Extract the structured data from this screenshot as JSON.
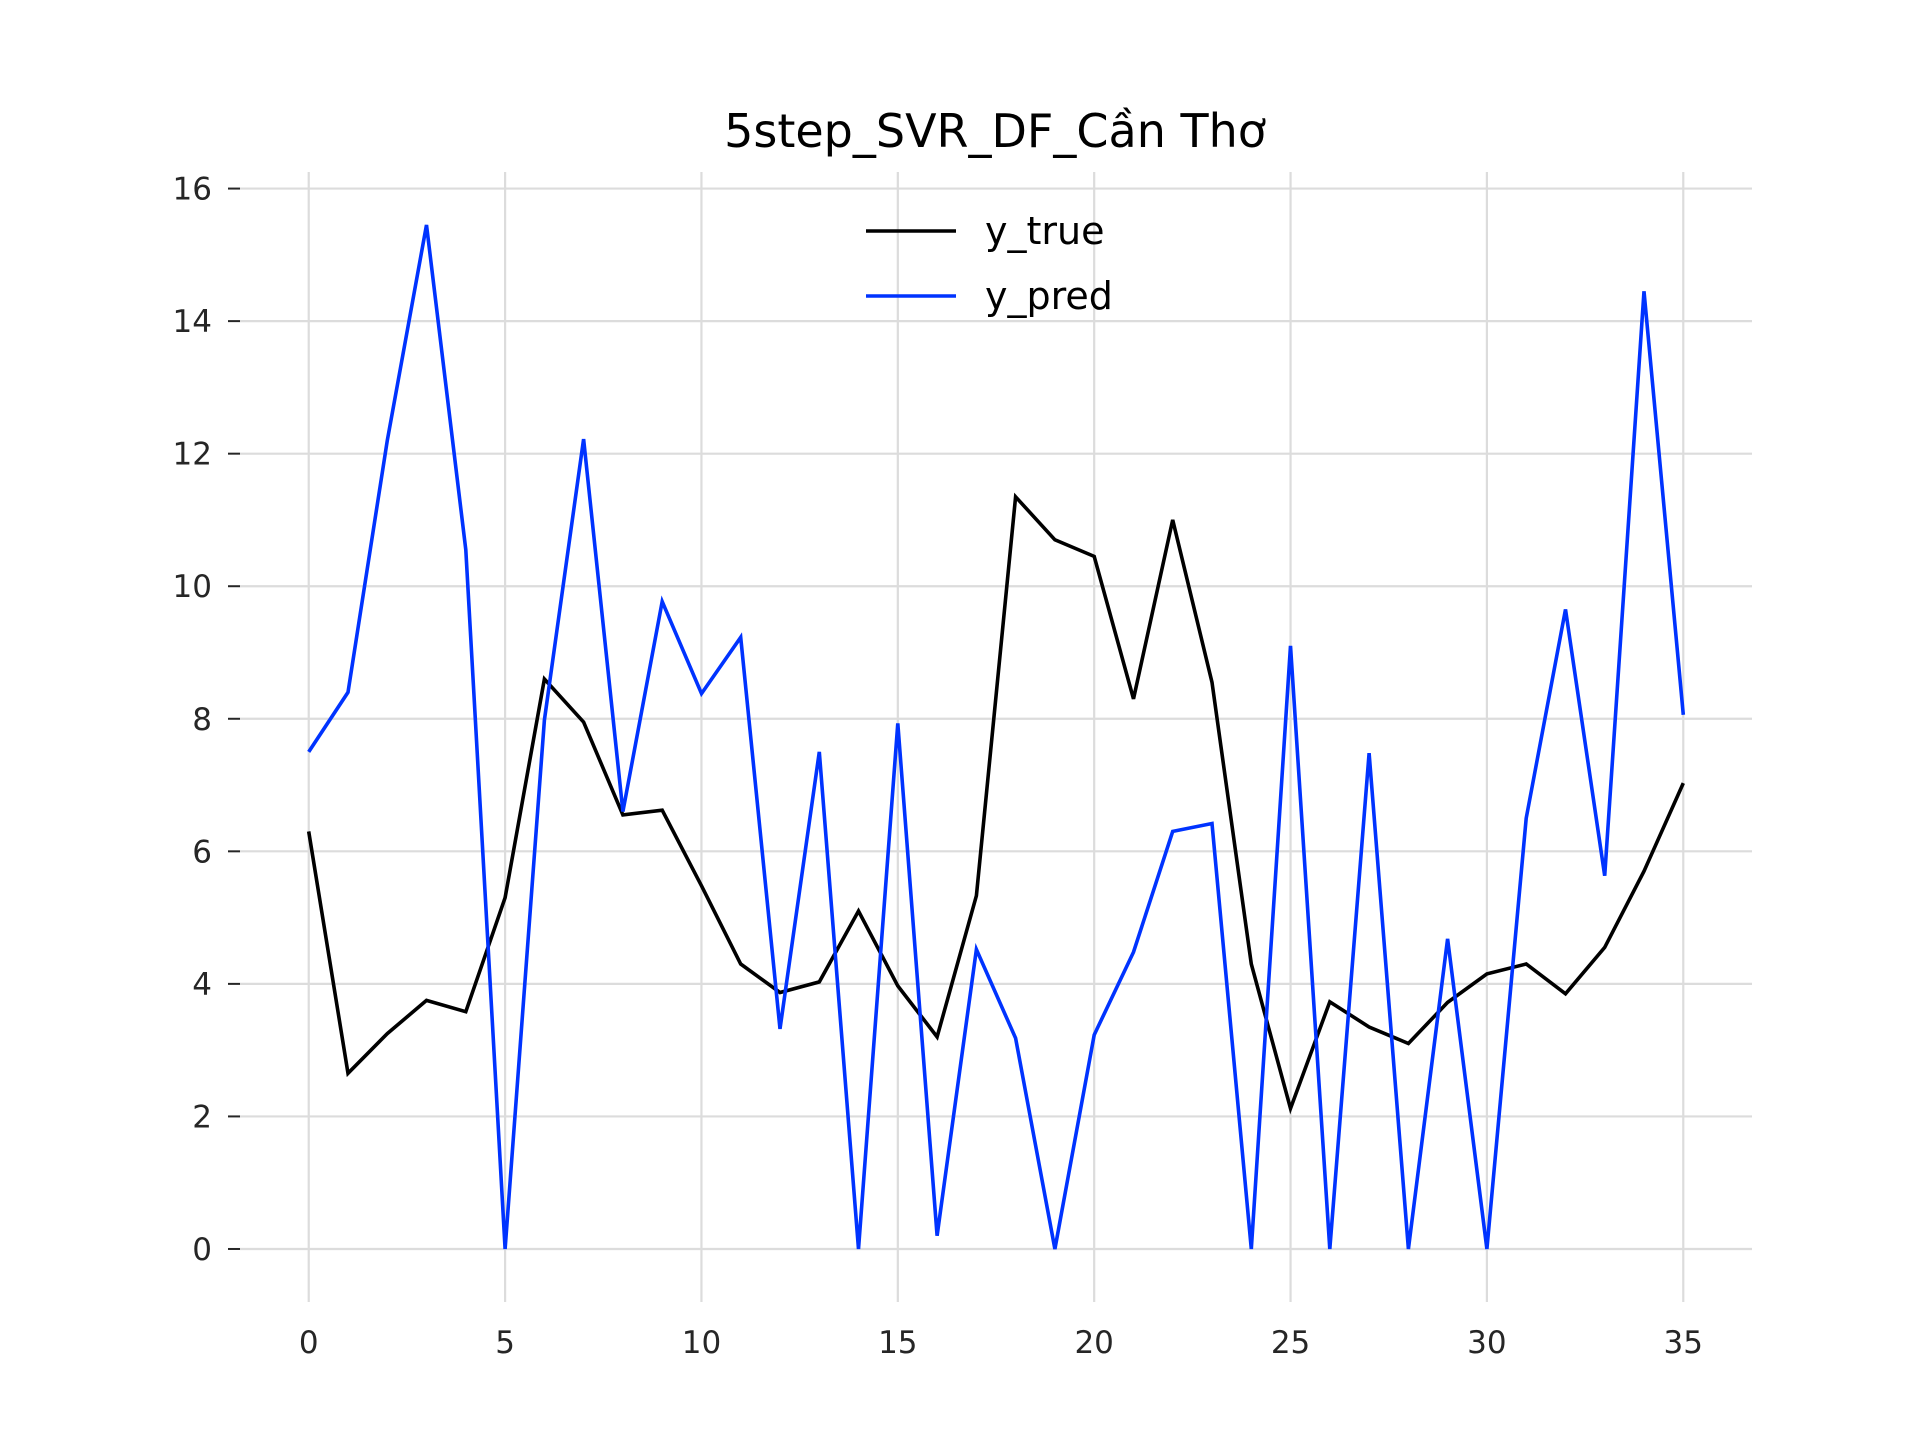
{
  "chart_data": {
    "type": "line",
    "title": "5step_SVR_DF_Cần Thơ",
    "xlabel": "",
    "ylabel": "",
    "xlim": [
      -1.75,
      36.75
    ],
    "ylim": [
      -0.8,
      16.25
    ],
    "xticks": [
      0,
      5,
      10,
      15,
      20,
      25,
      30,
      35
    ],
    "yticks": [
      0,
      2,
      4,
      6,
      8,
      10,
      12,
      14,
      16
    ],
    "grid": true,
    "legend_position": "top-center",
    "x": [
      0,
      1,
      2,
      3,
      4,
      5,
      6,
      7,
      8,
      9,
      10,
      11,
      12,
      13,
      14,
      15,
      16,
      17,
      18,
      19,
      20,
      21,
      22,
      23,
      24,
      25,
      26,
      27,
      28,
      29,
      30,
      31,
      32,
      33,
      34,
      35
    ],
    "series": [
      {
        "name": "y_true",
        "color": "#000000",
        "values": [
          6.3,
          2.65,
          3.25,
          3.75,
          3.58,
          5.3,
          8.6,
          7.95,
          6.55,
          6.62,
          5.48,
          4.3,
          3.87,
          4.03,
          5.1,
          3.97,
          3.2,
          5.33,
          11.35,
          10.7,
          10.45,
          8.3,
          11.0,
          8.55,
          4.3,
          2.12,
          3.73,
          3.35,
          3.1,
          3.72,
          4.15,
          4.3,
          3.85,
          4.55,
          5.7,
          7.03
        ]
      },
      {
        "name": "y_pred",
        "color": "#0033ff",
        "values": [
          7.5,
          8.4,
          12.2,
          15.45,
          10.55,
          0.0,
          7.98,
          12.22,
          6.6,
          9.77,
          8.38,
          9.23,
          3.32,
          7.5,
          0.0,
          7.93,
          0.2,
          4.52,
          3.18,
          0.0,
          3.23,
          4.48,
          6.3,
          6.42,
          0.0,
          9.1,
          0.0,
          7.48,
          0.0,
          4.68,
          0.0,
          6.5,
          9.65,
          5.63,
          14.45,
          8.06
        ]
      }
    ]
  }
}
